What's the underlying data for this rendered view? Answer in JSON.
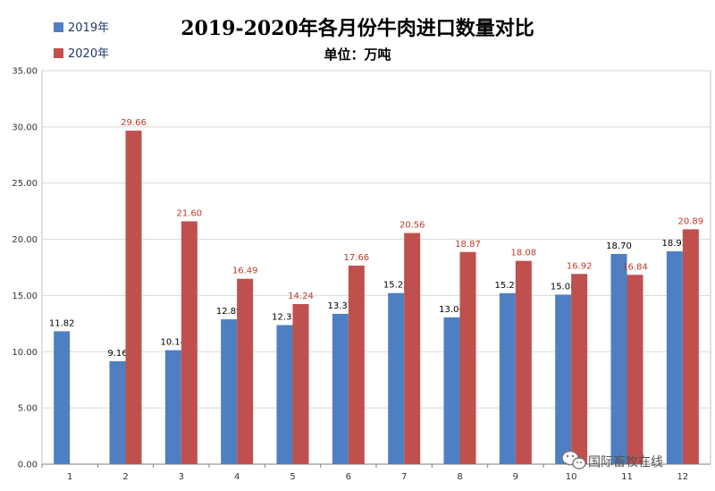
{
  "chart_data": {
    "type": "bar",
    "title": "2019-2020年各月份牛肉进口数量对比",
    "subtitle": "单位：万吨",
    "categories": [
      "1",
      "2",
      "3",
      "4",
      "5",
      "6",
      "7",
      "8",
      "9",
      "10",
      "11",
      "12"
    ],
    "series": [
      {
        "name": "2019年",
        "color": "#4f7fc3",
        "label_color": "#000000",
        "values": [
          11.82,
          9.16,
          10.14,
          12.89,
          12.37,
          13.37,
          15.22,
          13.06,
          15.21,
          15.08,
          18.7,
          18.93
        ]
      },
      {
        "name": "2020年",
        "color": "#c0504d",
        "label_color": "#c0392b",
        "values": [
          null,
          29.66,
          21.6,
          16.49,
          14.24,
          17.66,
          20.56,
          18.87,
          18.08,
          16.92,
          16.84,
          20.89
        ]
      }
    ],
    "ylim": [
      0,
      35
    ],
    "yticks": [
      "0.00",
      "5.00",
      "10.00",
      "15.00",
      "20.00",
      "25.00",
      "30.00",
      "35.00"
    ],
    "grid": true,
    "legend_position": "top-left"
  },
  "watermark": {
    "text": "国际畜牧在线",
    "icon": "wechat-icon"
  }
}
